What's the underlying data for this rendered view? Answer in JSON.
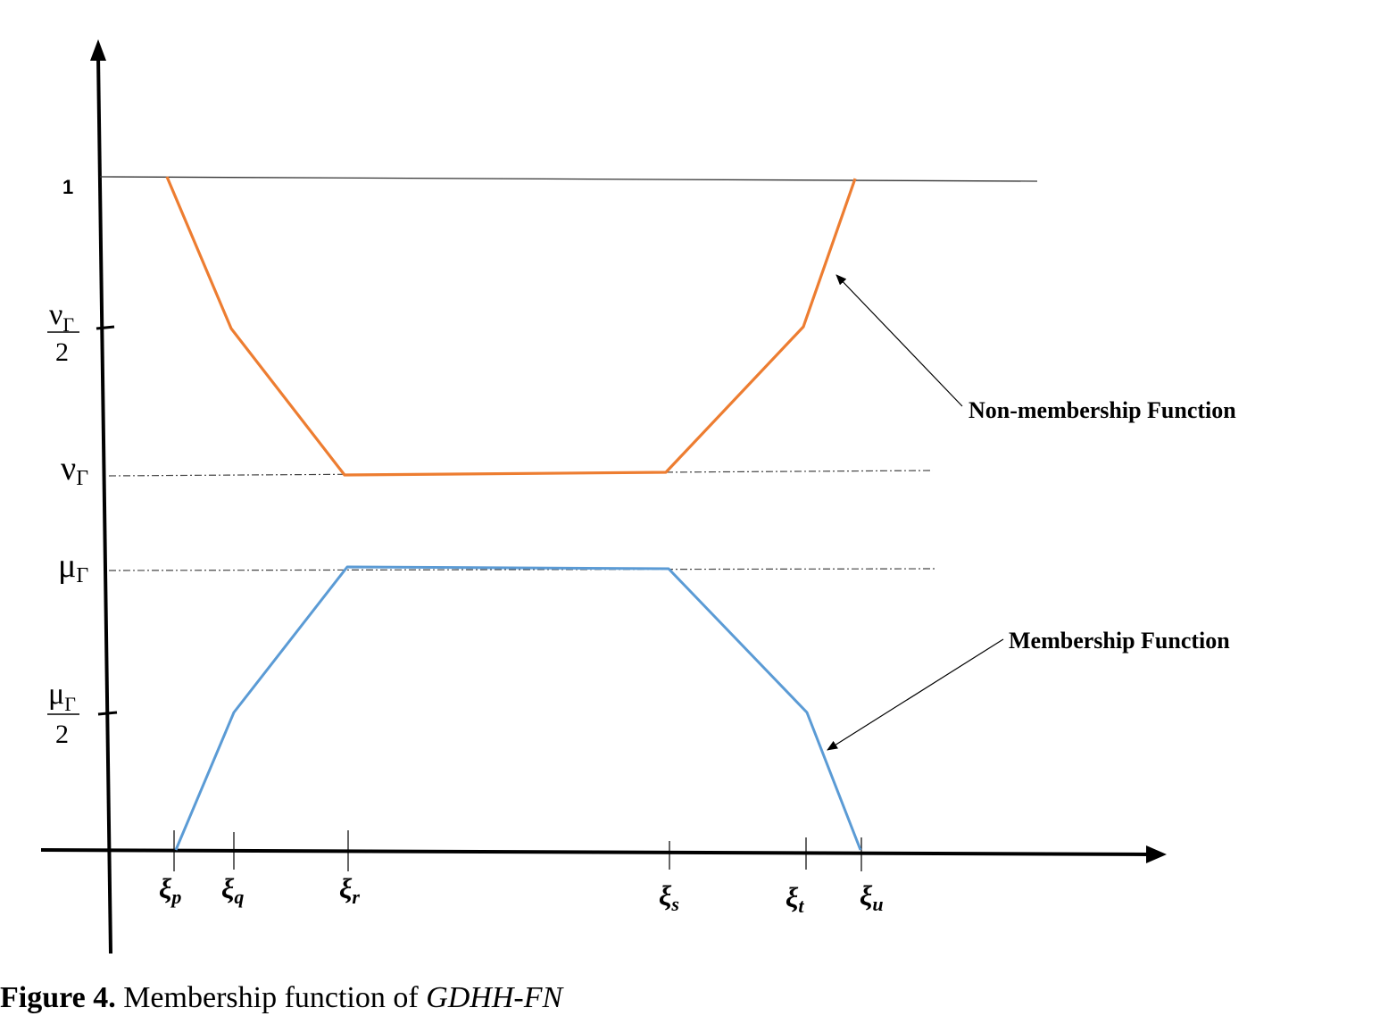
{
  "diagram": {
    "y_labels": {
      "one": "1",
      "nu": {
        "symbol": "ν",
        "subscript": "Γ"
      },
      "nu_half": {
        "numerator_symbol": "ν",
        "numerator_subscript": "Γ",
        "denominator": "2"
      },
      "mu": {
        "symbol": "μ",
        "subscript": "Γ"
      },
      "mu_half": {
        "numerator_symbol": "μ",
        "numerator_subscript": "Γ",
        "denominator": "2"
      }
    },
    "x_ticks": [
      {
        "symbol": "ξ",
        "subscript": "p"
      },
      {
        "symbol": "ξ",
        "subscript": "q"
      },
      {
        "symbol": "ξ",
        "subscript": "r"
      },
      {
        "symbol": "ξ",
        "subscript": "s"
      },
      {
        "symbol": "ξ",
        "subscript": "t"
      },
      {
        "symbol": "ξ",
        "subscript": "u"
      }
    ],
    "annotations": {
      "non_membership": "Non-membership Function",
      "membership": "Membership Function"
    },
    "colors": {
      "non_membership": "#ED7D31",
      "membership": "#5B9BD5",
      "axes": "#000000",
      "guides": "#444444"
    }
  },
  "caption": {
    "figure_number": "Figure 4.",
    "text": " Membership function of ",
    "math": "GDHH-FN"
  }
}
